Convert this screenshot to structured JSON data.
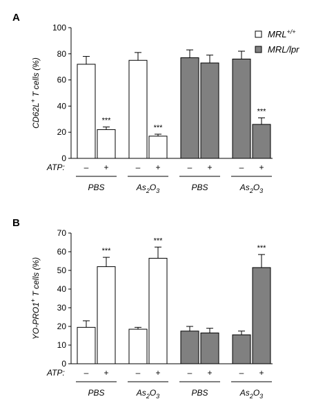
{
  "legend": [
    {
      "label": "MRL",
      "sup": "+/+",
      "color": "#ffffff"
    },
    {
      "label": "MRL/lpr",
      "sup": "",
      "color": "#808080"
    }
  ],
  "atp_label": "ATP:",
  "atp_levels": [
    "–",
    "+"
  ],
  "chart_data": [
    {
      "panel": "A",
      "type": "bar",
      "ylabel": {
        "main": "CD62L",
        "sup": "+",
        "rest": " T cells (%)"
      },
      "ylim": [
        0,
        100
      ],
      "yticks": [
        0,
        20,
        40,
        60,
        80,
        100
      ],
      "groups": [
        {
          "strain": "MRL+/+",
          "treatment": "PBS",
          "label": "PBS",
          "sub": "",
          "color": "#ffffff"
        },
        {
          "strain": "MRL+/+",
          "treatment": "As2O3",
          "label": "As",
          "sub": "2",
          "label2": "O",
          "sub2": "3",
          "color": "#ffffff"
        },
        {
          "strain": "MRL/lpr",
          "treatment": "PBS",
          "label": "PBS",
          "sub": "",
          "color": "#808080"
        },
        {
          "strain": "MRL/lpr",
          "treatment": "As2O3",
          "label": "As",
          "sub": "2",
          "label2": "O",
          "sub2": "3",
          "color": "#808080"
        }
      ],
      "values": [
        [
          72,
          22
        ],
        [
          75,
          17
        ],
        [
          77,
          73
        ],
        [
          76,
          26
        ]
      ],
      "errors": [
        [
          6,
          2
        ],
        [
          6,
          1.5
        ],
        [
          6,
          6
        ],
        [
          6,
          5
        ]
      ],
      "significance": [
        [
          "",
          "***"
        ],
        [
          "",
          "***"
        ],
        [
          "",
          ""
        ],
        [
          "",
          "***"
        ]
      ]
    },
    {
      "panel": "B",
      "type": "bar",
      "ylabel": {
        "main": "YO-PRO1",
        "sup": "+",
        "rest": " T cells (%)"
      },
      "ylim": [
        0,
        70
      ],
      "yticks": [
        0,
        10,
        20,
        30,
        40,
        50,
        60,
        70
      ],
      "groups": [
        {
          "strain": "MRL+/+",
          "treatment": "PBS",
          "label": "PBS",
          "sub": "",
          "color": "#ffffff"
        },
        {
          "strain": "MRL+/+",
          "treatment": "As2O3",
          "label": "As",
          "sub": "2",
          "label2": "O",
          "sub2": "3",
          "color": "#ffffff"
        },
        {
          "strain": "MRL/lpr",
          "treatment": "PBS",
          "label": "PBS",
          "sub": "",
          "color": "#808080"
        },
        {
          "strain": "MRL/lpr",
          "treatment": "As2O3",
          "label": "As",
          "sub": "2",
          "label2": "O",
          "sub2": "3",
          "color": "#808080"
        }
      ],
      "values": [
        [
          19.5,
          52
        ],
        [
          18.5,
          56.5
        ],
        [
          17.5,
          16.5
        ],
        [
          15.5,
          51.5
        ]
      ],
      "errors": [
        [
          3.5,
          5
        ],
        [
          1,
          6
        ],
        [
          2.5,
          2.5
        ],
        [
          2,
          7
        ]
      ],
      "significance": [
        [
          "",
          "***"
        ],
        [
          "",
          "***"
        ],
        [
          "",
          ""
        ],
        [
          "",
          "***"
        ]
      ]
    }
  ]
}
